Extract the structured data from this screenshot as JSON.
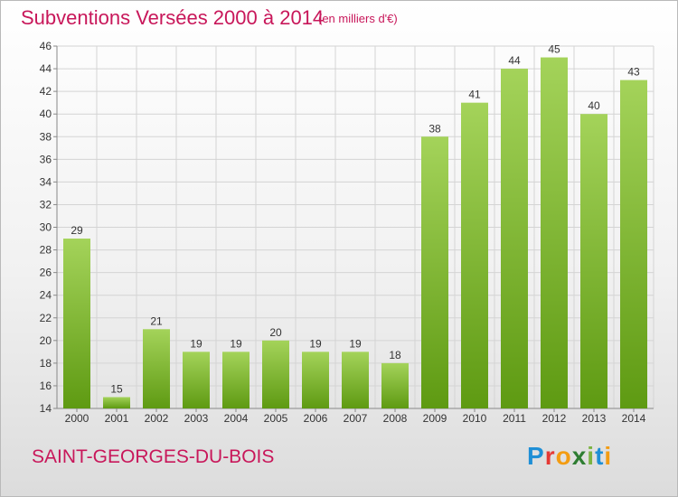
{
  "header": {
    "title": "Subventions Versées 2000 à 2014",
    "subtitle": "(en milliers d'€)"
  },
  "footer": {
    "commune": "SAINT-GEORGES-DU-BOIS",
    "logo": {
      "letters": [
        "P",
        "r",
        "o",
        "x",
        "i",
        "t",
        "i"
      ],
      "colors": [
        "#1f8fd6",
        "#e53935",
        "#f39c12",
        "#2e7d32",
        "#7cb342",
        "#1f8fd6",
        "#f39c12"
      ]
    }
  },
  "chart_data": {
    "type": "bar",
    "categories": [
      "2000",
      "2001",
      "2002",
      "2003",
      "2004",
      "2005",
      "2006",
      "2007",
      "2008",
      "2009",
      "2010",
      "2011",
      "2012",
      "2013",
      "2014"
    ],
    "values": [
      29,
      15,
      21,
      19,
      19,
      20,
      19,
      19,
      18,
      38,
      41,
      44,
      45,
      40,
      43
    ],
    "ylim": [
      14,
      46
    ],
    "yticks": [
      14,
      16,
      18,
      20,
      22,
      24,
      26,
      28,
      30,
      32,
      34,
      36,
      38,
      40,
      42,
      44,
      46
    ],
    "grid": true,
    "colors": {
      "bar_light": "#a4d35a",
      "bar_dark": "#5e9a12",
      "grid": "#d4d4d4",
      "axis_text": "#333333"
    }
  }
}
